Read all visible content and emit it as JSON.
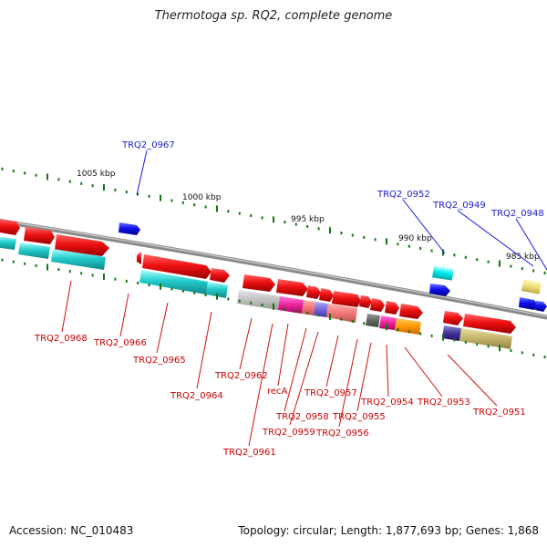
{
  "title": "Thermotoga sp. RQ2, complete genome",
  "footer": {
    "accession": "Accession: NC_010483",
    "summary": "Topology: circular; Length: 1,877,693 bp; Genes: 1,868"
  },
  "kbp_labels": [
    "1005 kbp",
    "1000 kbp",
    "995 kbp",
    "990 kbp",
    "985 kbp"
  ],
  "genes_top": [
    "TRQ2_0967",
    "TRQ2_0952",
    "TRQ2_0949",
    "TRQ2_0948"
  ],
  "genes_bottom": [
    "TRQ2_0968",
    "TRQ2_0966",
    "TRQ2_0965",
    "TRQ2_0964",
    "TRQ2_0962",
    "recA",
    "TRQ2_0961",
    "TRQ2_0959",
    "TRQ2_0958",
    "TRQ2_0957",
    "TRQ2_0956",
    "TRQ2_0955",
    "TRQ2_0954",
    "TRQ2_0953",
    "TRQ2_0951"
  ],
  "colors": {
    "backbone": "#8a8a8a",
    "gene_red": "#ee1111",
    "gene_blue": "#1111ee",
    "cyan": "#22cccc",
    "label_red": "#cc0000",
    "label_blue": "#0000cc",
    "tick_green": "#117711"
  }
}
